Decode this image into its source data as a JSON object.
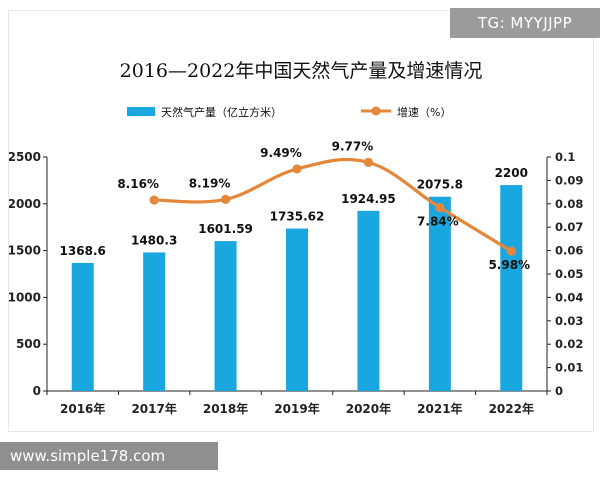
{
  "colors": {
    "bar": "#1aa7e0",
    "line": "#e5873a",
    "axis": "#222222",
    "grid": "#d9d9d9"
  },
  "watermarks": {
    "top": "TG: MYYJJPP",
    "bottom": "www.simple178.com"
  },
  "chart_data": {
    "type": "bar",
    "title": "2016—2022年中国天然气产量及增速情况",
    "categories": [
      "2016年",
      "2017年",
      "2018年",
      "2019年",
      "2020年",
      "2021年",
      "2022年"
    ],
    "series": [
      {
        "name": "天然气产量（亿立方米）",
        "type": "bar",
        "axis": "left",
        "values": [
          1368.6,
          1480.3,
          1601.59,
          1735.62,
          1924.95,
          2075.8,
          2200
        ],
        "labels": [
          "1368.6",
          "1480.3",
          "1601.59",
          "1735.62",
          "1924.95",
          "2075.8",
          "2200"
        ]
      },
      {
        "name": "增速（%）",
        "type": "line",
        "axis": "right",
        "x": [
          "2017年",
          "2018年",
          "2019年",
          "2020年",
          "2021年",
          "2022年"
        ],
        "values": [
          0.0816,
          0.0819,
          0.0949,
          0.0977,
          0.0784,
          0.0598
        ],
        "labels": [
          "8.16%",
          "8.19%",
          "9.49%",
          "9.77%",
          "7.84%",
          "5.98%"
        ]
      }
    ],
    "left_axis": {
      "ylim": [
        0,
        2500
      ],
      "ticks": [
        0,
        500,
        1000,
        1500,
        2000,
        2500
      ],
      "tick_labels": [
        "0",
        "500",
        "1000",
        "1500",
        "2000",
        "2500"
      ]
    },
    "right_axis": {
      "ylim": [
        0,
        0.1
      ],
      "ticks": [
        0,
        0.01,
        0.02,
        0.03,
        0.04,
        0.05,
        0.06,
        0.07,
        0.08,
        0.09,
        0.1
      ],
      "tick_labels": [
        "0",
        "0.01",
        "0.02",
        "0.03",
        "0.04",
        "0.05",
        "0.06",
        "0.07",
        "0.08",
        "0.09",
        "0.1"
      ]
    },
    "legend": {
      "placement": "top-center"
    },
    "grid": false
  }
}
